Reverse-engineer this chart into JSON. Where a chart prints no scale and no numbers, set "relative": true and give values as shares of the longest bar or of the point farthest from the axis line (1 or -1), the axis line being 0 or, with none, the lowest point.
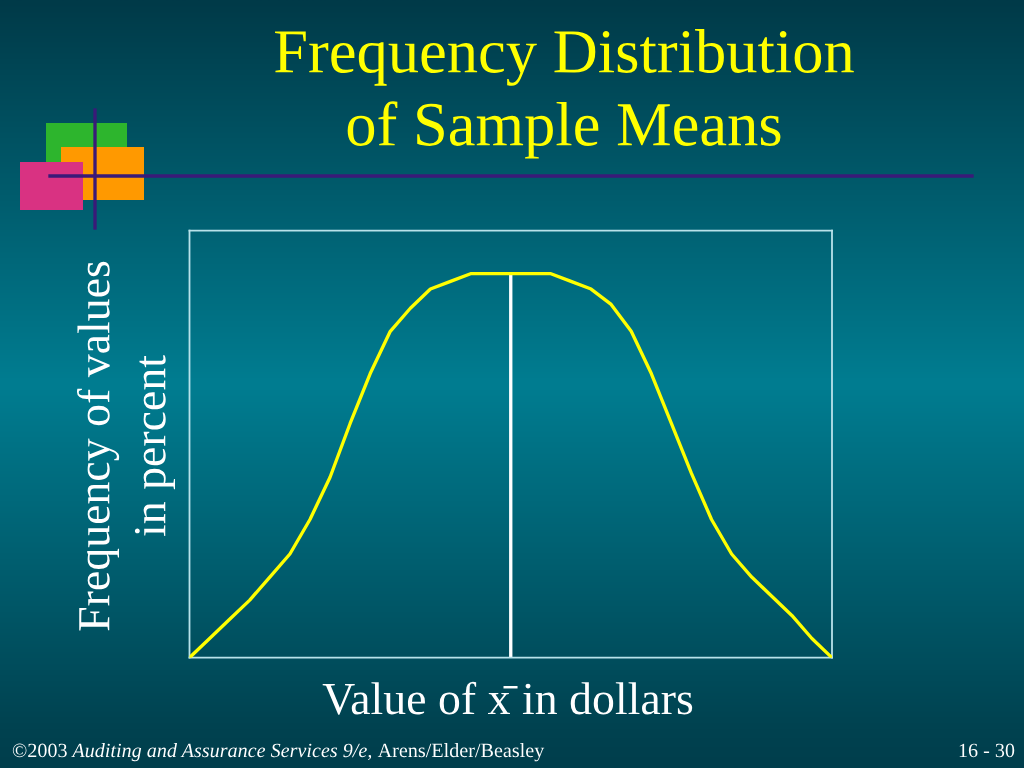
{
  "chart_data": {
    "type": "line",
    "title": "Frequency Distribution\nof Sample Means",
    "xlabel": "Value of x̄ in dollars",
    "ylabel": "Frequency of values\nin percent",
    "categories": [
      null,
      null,
      null,
      null,
      null,
      null,
      null,
      null,
      null,
      null,
      null,
      null,
      null,
      null,
      null,
      null,
      null,
      null,
      null,
      null,
      null,
      null,
      null,
      null,
      null,
      null,
      null,
      null,
      null,
      null,
      null,
      null,
      null
    ],
    "series": [
      {
        "color": "#ffff00",
        "values": [
          0,
          0.05,
          0.1,
          0.15,
          0.21,
          0.27,
          0.36,
          0.47,
          0.61,
          0.74,
          0.85,
          0.91,
          0.96,
          0.98,
          1.0,
          1.0,
          1.0,
          1.0,
          1.0,
          0.98,
          0.96,
          0.92,
          0.85,
          0.74,
          0.61,
          0.48,
          0.36,
          0.27,
          0.21,
          0.16,
          0.11,
          0.05,
          0
        ]
      }
    ],
    "relative": true,
    "annotations": [
      "©2003",
      "Auditing and Assurance Services 9/e,",
      "Arens/Elder/Beasley",
      "16 - 30"
    ]
  }
}
